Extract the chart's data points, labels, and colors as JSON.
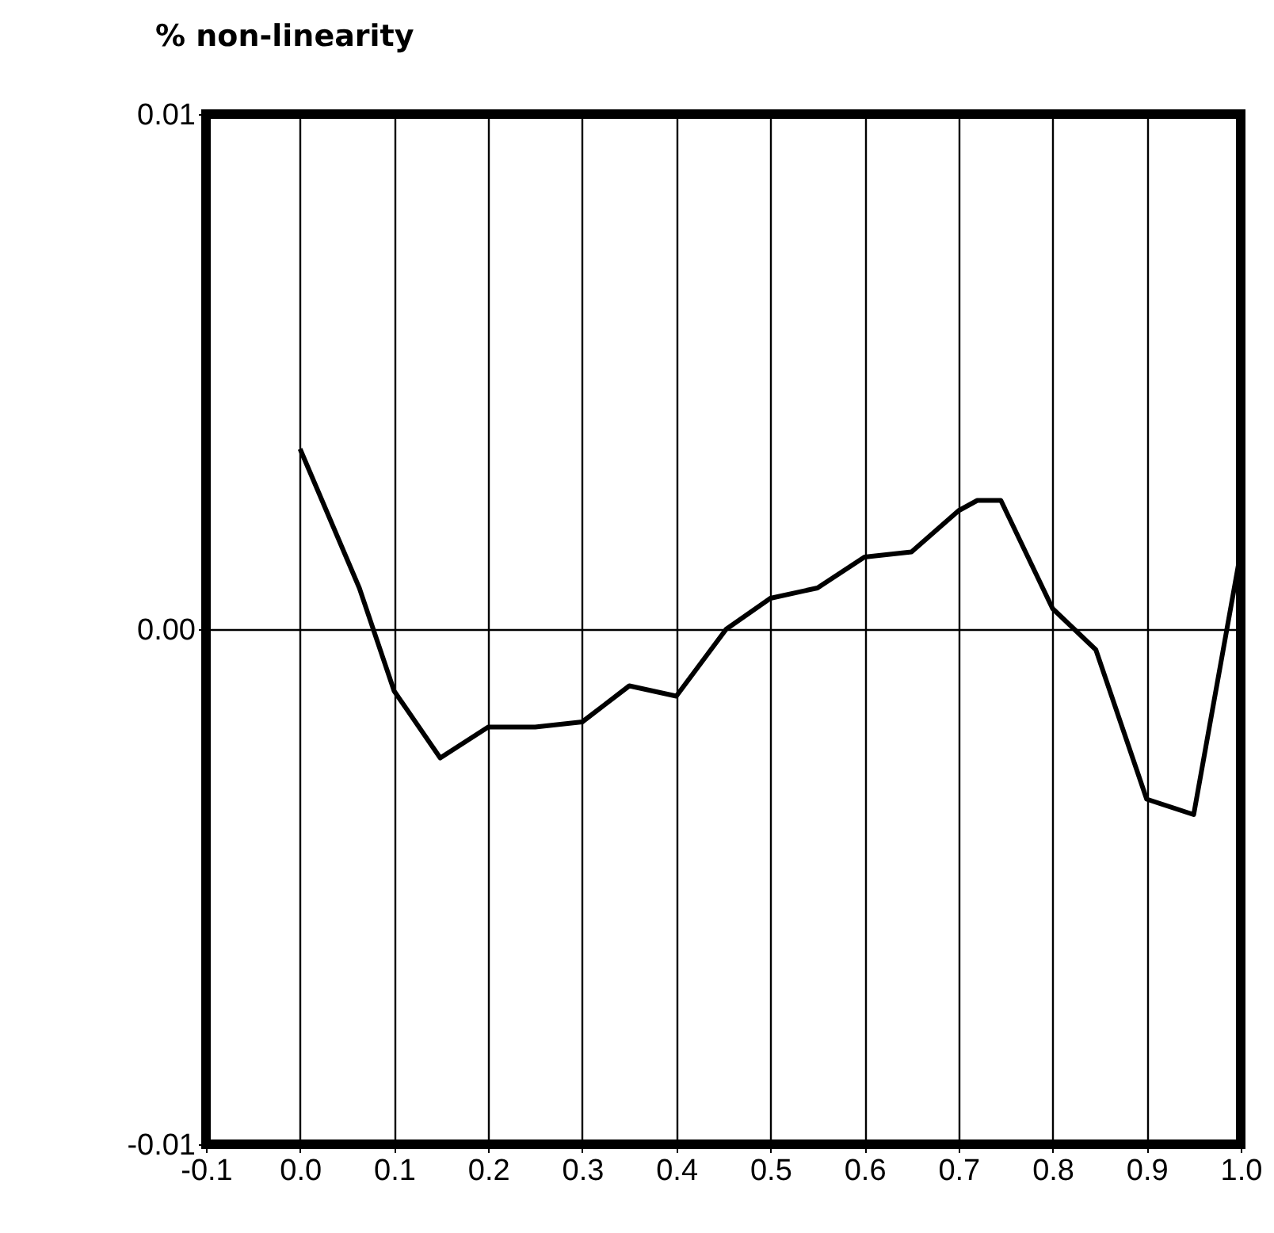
{
  "chart_data": {
    "type": "line",
    "title": "% non-linearity",
    "x": [
      0.0,
      0.063,
      0.1,
      0.149,
      0.2,
      0.25,
      0.3,
      0.35,
      0.4,
      0.453,
      0.5,
      0.55,
      0.6,
      0.65,
      0.7,
      0.72,
      0.745,
      0.8,
      0.846,
      0.9,
      0.95,
      1.0
    ],
    "series": [
      {
        "color": "#000000",
        "values": [
          0.0035,
          0.0008,
          -0.0012,
          -0.0025,
          -0.0019,
          -0.0019,
          -0.0018,
          -0.0011,
          -0.0013,
          0.0,
          0.0006,
          0.0008,
          0.0014,
          0.0015,
          0.0023,
          0.0025,
          0.0025,
          0.0004,
          -0.0004,
          -0.0033,
          -0.0036,
          0.0015
        ]
      }
    ],
    "xlim": [
      -0.1,
      1.0
    ],
    "ylim": [
      -0.01,
      0.01
    ],
    "xticks": [
      {
        "value": -0.1,
        "label": "-0.1"
      },
      {
        "value": 0,
        "label": "0.0"
      },
      0.1,
      0.2,
      0.3,
      0.4,
      0.5,
      0.6,
      0.7,
      0.8,
      0.9,
      {
        "value": 1,
        "label": "1.0"
      }
    ],
    "yticks": [
      {
        "value": -0.01,
        "label": "-0.01"
      },
      {
        "value": 0,
        "label": "0.00"
      },
      {
        "value": 0.01,
        "label": "0.01"
      }
    ],
    "grid": true,
    "line_style": "solid"
  }
}
